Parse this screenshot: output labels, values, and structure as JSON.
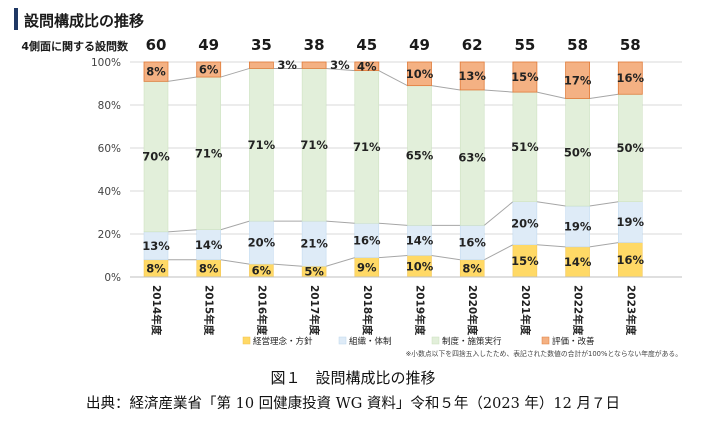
{
  "chart_data": {
    "type": "bar",
    "title": "設問構成比の推移",
    "count_label": "4側面に関する設問数",
    "categories": [
      "2014年度",
      "2015年度",
      "2016年度",
      "2017年度",
      "2018年度",
      "2019年度",
      "2020年度",
      "2021年度",
      "2022年度",
      "2023年度"
    ],
    "question_counts": [
      60,
      49,
      35,
      38,
      45,
      49,
      62,
      55,
      58,
      58
    ],
    "ylim": [
      0,
      100
    ],
    "yticks": [
      "0%",
      "20%",
      "40%",
      "60%",
      "80%",
      "100%"
    ],
    "grid": true,
    "legend_position": "bottom",
    "series": [
      {
        "name": "経営理念・方針",
        "color": "#FFD966",
        "values": [
          8,
          8,
          6,
          5,
          9,
          10,
          8,
          15,
          14,
          16
        ]
      },
      {
        "name": "組織・体制",
        "color": "#DEEBF7",
        "values": [
          13,
          14,
          20,
          21,
          16,
          14,
          16,
          20,
          19,
          19
        ]
      },
      {
        "name": "制度・施策実行",
        "color": "#E2EFDA",
        "values": [
          70,
          71,
          71,
          71,
          71,
          65,
          63,
          51,
          50,
          50
        ]
      },
      {
        "name": "評価・改善",
        "color": "#F4B183",
        "values": [
          8,
          6,
          3,
          3,
          4,
          10,
          13,
          15,
          17,
          16
        ]
      }
    ],
    "note": "※小数点以下を四捨五入したため、表記された数値の合計が100%とならない年度がある。"
  },
  "captions": {
    "figure": "図１　設問構成比の推移",
    "source": "出典：経済産業省「第 10 回健康投資 WG 資料」令和５年（2023 年）12 月７日"
  }
}
